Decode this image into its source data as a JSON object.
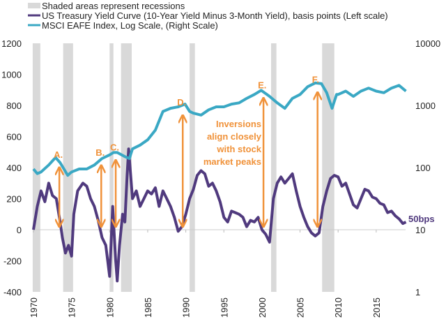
{
  "chart_data": {
    "type": "line",
    "legend": [
      {
        "label": "Shaded areas represent recessions",
        "color": "#d9d9d9",
        "kind": "box"
      },
      {
        "label": "US Treasury Yield Curve (10-Year Yield Minus 3-Month Yield), basis points (Left scale)",
        "color": "#503a7e",
        "kind": "line"
      },
      {
        "label": "MSCI EAFE Index, Log Scale, (Right Scale)",
        "color": "#3aa8c4",
        "kind": "line"
      }
    ],
    "legend_position": "top-left",
    "x_range": [
      1970,
      2019.5
    ],
    "x_ticks": [
      "1970",
      "1975",
      "1980",
      "1985",
      "1990",
      "1995",
      "2000",
      "2005",
      "2010",
      "2015"
    ],
    "left_axis": {
      "range": [
        -400,
        1200
      ],
      "ticks": [
        "1200",
        "1000",
        "800",
        "600",
        "400",
        "200",
        "0",
        "-200",
        "-400"
      ]
    },
    "right_axis": {
      "scale": "log",
      "range": [
        1,
        10000
      ],
      "ticks": [
        "10000",
        "1000",
        "100",
        "10",
        "1"
      ]
    },
    "recessions": [
      [
        1969.9,
        1970.9
      ],
      [
        1973.9,
        1975.2
      ],
      [
        1980.0,
        1980.5
      ],
      [
        1981.5,
        1982.9
      ],
      [
        1990.5,
        1991.2
      ],
      [
        2001.2,
        2001.9
      ],
      [
        2007.9,
        2009.5
      ]
    ],
    "series": [
      {
        "name": "US Treasury Yield Curve (bps)",
        "axis": "left",
        "color": "#503a7e",
        "x": [
          1970,
          1970.5,
          1971,
          1971.5,
          1972,
          1972.5,
          1973,
          1973.5,
          1973.8,
          1974.2,
          1974.6,
          1975,
          1975.3,
          1975.8,
          1976.5,
          1977,
          1977.5,
          1978,
          1978.5,
          1979,
          1979.5,
          1980,
          1980.4,
          1980.8,
          1981,
          1981.3,
          1981.7,
          1982,
          1982.3,
          1982.5,
          1983,
          1983.5,
          1984,
          1984.5,
          1985,
          1985.5,
          1986,
          1986.5,
          1987,
          1987.5,
          1988,
          1988.5,
          1989,
          1989.5,
          1990,
          1990.5,
          1991,
          1991.5,
          1992,
          1992.5,
          1993,
          1993.5,
          1994,
          1994.5,
          1995,
          1995.5,
          1996,
          1996.5,
          1997,
          1997.5,
          1998,
          1998.5,
          1999,
          1999.5,
          2000,
          2000.5,
          2001,
          2001.5,
          2002,
          2002.5,
          2003,
          2003.5,
          2004,
          2004.5,
          2005,
          2005.5,
          2006,
          2006.5,
          2007,
          2007.5,
          2008,
          2008.5,
          2009,
          2009.5,
          2010,
          2010.5,
          2011,
          2011.5,
          2012,
          2012.5,
          2013,
          2013.5,
          2014,
          2014.5,
          2015,
          2015.5,
          2016,
          2016.5,
          2017,
          2017.5,
          2018,
          2018.5,
          2018.9
        ],
        "values": [
          0,
          150,
          250,
          180,
          300,
          220,
          200,
          50,
          -50,
          -150,
          -100,
          -170,
          100,
          250,
          300,
          280,
          200,
          150,
          60,
          -50,
          -100,
          -300,
          150,
          -200,
          -330,
          -100,
          100,
          50,
          350,
          520,
          200,
          250,
          150,
          200,
          250,
          230,
          270,
          150,
          250,
          200,
          150,
          80,
          -10,
          20,
          100,
          200,
          260,
          350,
          380,
          360,
          280,
          300,
          250,
          180,
          80,
          50,
          120,
          110,
          100,
          80,
          20,
          60,
          50,
          80,
          0,
          -30,
          -80,
          200,
          300,
          340,
          300,
          330,
          360,
          250,
          150,
          80,
          20,
          -20,
          -40,
          -20,
          150,
          250,
          330,
          350,
          340,
          280,
          300,
          230,
          160,
          140,
          200,
          260,
          250,
          210,
          200,
          170,
          160,
          110,
          120,
          90,
          70,
          40,
          50
        ]
      },
      {
        "name": "MSCI EAFE Index",
        "axis": "right",
        "color": "#3aa8c4",
        "x": [
          1970,
          1970.5,
          1971,
          1972,
          1972.9,
          1973.5,
          1974.5,
          1975,
          1976,
          1977,
          1978,
          1979,
          1980,
          1980.5,
          1981,
          1982,
          1982.6,
          1983,
          1984,
          1985,
          1986,
          1987,
          1988,
          1989,
          1989.9,
          1990.5,
          1991,
          1992,
          1993,
          1994,
          1995,
          1996,
          1997,
          1998,
          1999,
          1999.9,
          2001,
          2002,
          2003,
          2004,
          2005,
          2006,
          2007,
          2007.8,
          2008.5,
          2009.2,
          2009.8,
          2010,
          2011,
          2012,
          2013,
          2014,
          2015,
          2016,
          2017,
          2018,
          2018.9
        ],
        "values": [
          95,
          80,
          85,
          110,
          145,
          120,
          75,
          85,
          95,
          95,
          110,
          140,
          160,
          175,
          175,
          150,
          140,
          200,
          230,
          280,
          400,
          800,
          900,
          950,
          1050,
          800,
          750,
          700,
          850,
          950,
          950,
          1050,
          1100,
          1300,
          1500,
          1750,
          1400,
          1100,
          900,
          1300,
          1500,
          2000,
          2300,
          2250,
          1600,
          900,
          1500,
          1500,
          1700,
          1400,
          1700,
          1900,
          1700,
          1600,
          1900,
          2100,
          1700
        ]
      }
    ],
    "annotations": {
      "peaks": [
        {
          "label": "A.",
          "year": 1973.4,
          "eafe": 130,
          "yield": 20
        },
        {
          "label": "B.",
          "year": 1978.9,
          "eafe": 140,
          "yield": 20
        },
        {
          "label": "C.",
          "year": 1980.8,
          "eafe": 170,
          "yield": 20
        },
        {
          "label": "D.",
          "year": 1989.6,
          "eafe": 900,
          "yield": 20
        },
        {
          "label": "E.",
          "year": 2000.2,
          "eafe": 1700,
          "yield": 20
        },
        {
          "label": "F.",
          "year": 2007.3,
          "eafe": 2100,
          "yield": 20
        }
      ],
      "note_lines": [
        "Inversions",
        "align closely",
        "with stock",
        "market peaks"
      ],
      "end_label": "50bps"
    }
  }
}
